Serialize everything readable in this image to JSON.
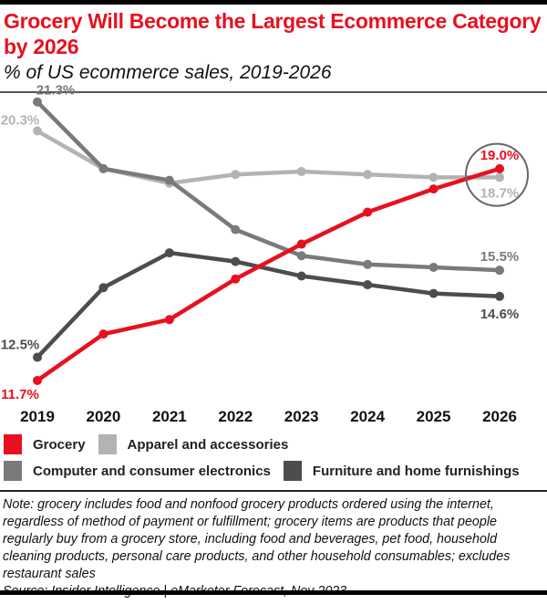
{
  "chart_data": {
    "type": "line",
    "title": "Grocery Will Become the Largest Ecommerce Category by 2026",
    "subtitle": "% of US ecommerce sales, 2019-2026",
    "categories": [
      "2019",
      "2020",
      "2021",
      "2022",
      "2023",
      "2024",
      "2025",
      "2026"
    ],
    "ylim": [
      11,
      22
    ],
    "grid": false,
    "legend_position": "bottom",
    "series": [
      {
        "name": "Grocery",
        "color": "#e8101e",
        "values": [
          11.7,
          13.3,
          13.8,
          15.2,
          16.4,
          17.5,
          18.3,
          19.0
        ],
        "labels": {
          "first": "11.7%",
          "last": "19.0%"
        }
      },
      {
        "name": "Apparel and accessories",
        "color": "#b3b3b3",
        "values": [
          20.3,
          19.0,
          18.5,
          18.8,
          18.9,
          18.8,
          18.7,
          18.7
        ],
        "labels": {
          "first": "20.3%",
          "last": "18.7%"
        }
      },
      {
        "name": "Computer and consumer electronics",
        "color": "#7a7a7a",
        "values": [
          21.3,
          19.0,
          18.6,
          16.9,
          16.0,
          15.7,
          15.6,
          15.5
        ],
        "labels": {
          "first": "21.3%",
          "last": "15.5%"
        }
      },
      {
        "name": "Furniture and home furnishings",
        "color": "#4d4d4d",
        "values": [
          12.5,
          14.9,
          16.1,
          15.8,
          15.3,
          15.0,
          14.7,
          14.6
        ],
        "labels": {
          "first": "12.5%",
          "last": "14.6%"
        }
      }
    ],
    "annotation": "circle highlighting 2026 Grocery vs Apparel"
  },
  "footer": {
    "note": "Note: grocery includes food and nonfood grocery products ordered using the internet, regardless of method of payment or fulfillment; grocery items are products that people regularly buy from a grocery store, including food and beverages, pet food, household cleaning products, personal care products, and other household consumables; excludes restaurant sales",
    "source": "Source: Insider Intelligence | eMarketer Forecast, Nov 2023"
  }
}
